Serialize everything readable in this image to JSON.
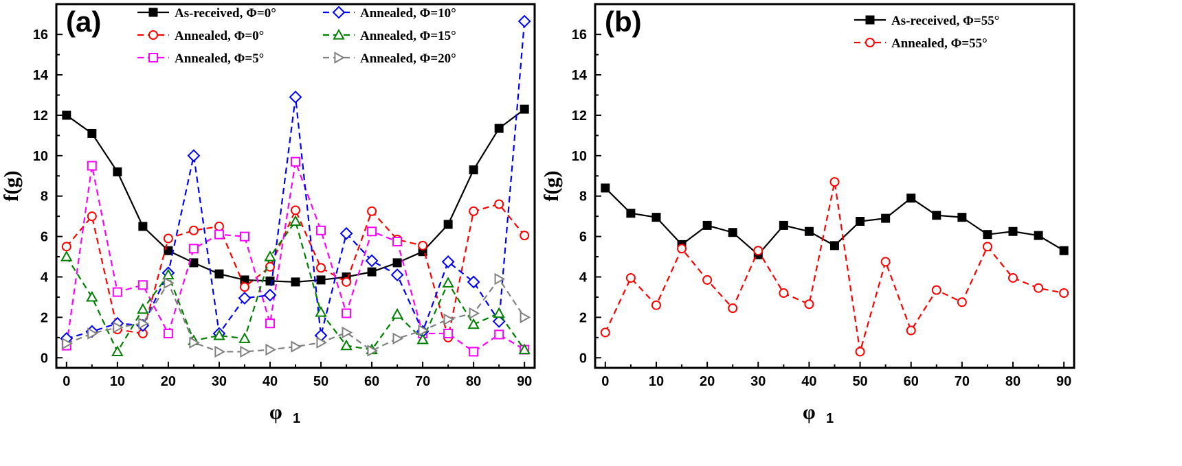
{
  "chart_data": [
    {
      "type": "line",
      "panel_label": "(a)",
      "xlabel": "φ",
      "xlabel_sub": "1",
      "ylabel": "f(g)",
      "xlim": [
        -2,
        92
      ],
      "ylim": [
        -0.5,
        17.5
      ],
      "xticks": [
        0,
        10,
        20,
        30,
        40,
        50,
        60,
        70,
        80,
        90
      ],
      "yticks": [
        0,
        2,
        4,
        6,
        8,
        10,
        12,
        14,
        16
      ],
      "x": [
        0,
        5,
        10,
        15,
        20,
        25,
        30,
        35,
        40,
        45,
        50,
        55,
        60,
        65,
        70,
        75,
        80,
        85,
        90
      ],
      "legend_position": "top",
      "series": [
        {
          "name": "As-received, Φ=0°",
          "color": "#000000",
          "marker": "square-filled",
          "dashed": false,
          "values": [
            12.0,
            11.1,
            9.2,
            6.5,
            5.3,
            4.7,
            4.15,
            3.85,
            3.8,
            3.75,
            3.85,
            4.0,
            4.25,
            4.7,
            5.25,
            6.6,
            9.3,
            11.35,
            12.3
          ]
        },
        {
          "name": "Annealed, Φ=0°",
          "color": "#ff0000",
          "marker": "circle",
          "dashed": true,
          "values": [
            5.5,
            7.0,
            1.4,
            1.2,
            5.9,
            6.3,
            6.5,
            3.5,
            4.5,
            7.3,
            4.45,
            3.75,
            7.25,
            5.85,
            5.55,
            1.0,
            7.25,
            7.6,
            6.05
          ]
        },
        {
          "name": "Annealed, Φ=5°",
          "color": "#ff00ff",
          "marker": "square",
          "dashed": true,
          "values": [
            0.6,
            9.5,
            3.25,
            3.6,
            1.2,
            5.4,
            6.1,
            6.0,
            1.7,
            9.7,
            6.3,
            2.2,
            6.25,
            5.75,
            1.2,
            1.2,
            0.3,
            1.15,
            0.4
          ]
        },
        {
          "name": "Annealed, Φ=10°",
          "color": "#0000ff",
          "marker": "diamond",
          "dashed": true,
          "values": [
            0.95,
            1.3,
            1.7,
            1.6,
            4.2,
            10.0,
            1.2,
            2.95,
            3.1,
            12.9,
            1.1,
            6.15,
            4.8,
            4.1,
            1.3,
            4.75,
            3.75,
            1.8,
            16.65
          ]
        },
        {
          "name": "Annealed, Φ=15°",
          "color": "#008000",
          "marker": "triangle-up",
          "dashed": true,
          "values": [
            5.0,
            3.0,
            0.3,
            2.4,
            4.1,
            0.85,
            1.1,
            0.95,
            5.0,
            6.75,
            2.25,
            0.6,
            0.4,
            2.15,
            0.9,
            3.7,
            1.65,
            2.2,
            0.4
          ]
        },
        {
          "name": "Annealed, Φ=20°",
          "color": "#808080",
          "marker": "triangle-right",
          "dashed": true,
          "values": [
            0.7,
            1.2,
            1.5,
            1.7,
            3.7,
            0.75,
            0.3,
            0.3,
            0.4,
            0.55,
            0.75,
            1.25,
            0.35,
            0.95,
            1.35,
            1.9,
            2.2,
            3.9,
            2.0
          ]
        }
      ]
    },
    {
      "type": "line",
      "panel_label": "(b)",
      "xlabel": "φ",
      "xlabel_sub": "1",
      "ylabel": "f(g)",
      "xlim": [
        -2,
        92
      ],
      "ylim": [
        -0.5,
        17.5
      ],
      "xticks": [
        0,
        10,
        20,
        30,
        40,
        50,
        60,
        70,
        80,
        90
      ],
      "yticks": [
        0,
        2,
        4,
        6,
        8,
        10,
        12,
        14,
        16
      ],
      "x": [
        0,
        5,
        10,
        15,
        20,
        25,
        30,
        35,
        40,
        45,
        50,
        55,
        60,
        65,
        70,
        75,
        80,
        85,
        90
      ],
      "legend_position": "top-right",
      "series": [
        {
          "name": "As-received, Φ=55°",
          "color": "#000000",
          "marker": "square-filled",
          "dashed": false,
          "values": [
            8.4,
            7.15,
            6.95,
            5.6,
            6.55,
            6.2,
            5.1,
            6.55,
            6.25,
            5.55,
            6.75,
            6.9,
            7.9,
            7.05,
            6.95,
            6.1,
            6.25,
            6.05,
            5.3
          ]
        },
        {
          "name": "Annealed, Φ=55°",
          "color": "#ff0000",
          "marker": "circle",
          "dashed": true,
          "values": [
            1.25,
            3.95,
            2.6,
            5.4,
            3.85,
            2.45,
            5.3,
            3.2,
            2.65,
            8.7,
            0.3,
            4.75,
            1.35,
            3.35,
            2.75,
            5.5,
            3.95,
            3.45,
            3.2
          ]
        }
      ]
    }
  ]
}
